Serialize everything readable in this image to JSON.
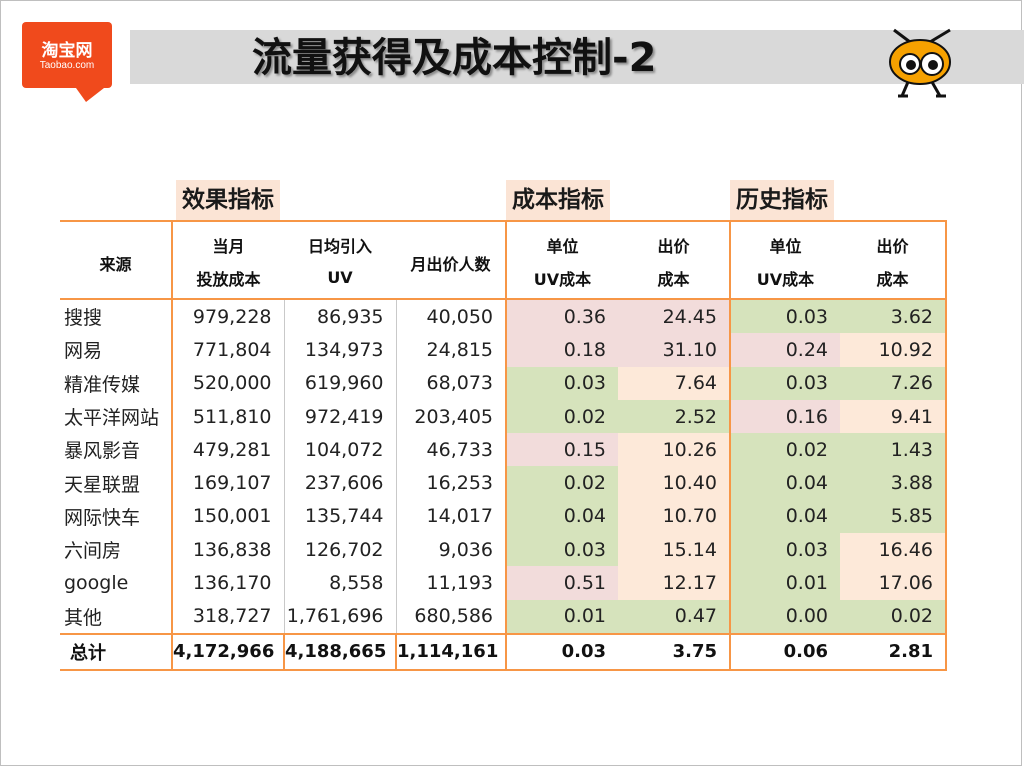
{
  "logo": {
    "cn": "淘宝网",
    "en": "Taobao.com"
  },
  "title": "流量获得及成本控制-2",
  "table": {
    "groups": {
      "effect": "效果指标",
      "cost": "成本指标",
      "history": "历史指标"
    },
    "headers": {
      "source": "来源",
      "monthly_cost_1": "当月",
      "monthly_cost_2": "投放成本",
      "daily_uv_1": "日均引入",
      "daily_uv_2": "UV",
      "monthly_bidders": "月出价人数",
      "unit_1": "单位",
      "unit_2": "UV成本",
      "bid_1": "出价",
      "bid_2": "成本",
      "hist_unit_1": "单位",
      "hist_unit_2": "UV成本",
      "hist_bid_1": "出价",
      "hist_bid_2": "成本"
    },
    "rows": [
      {
        "source": "搜搜",
        "cost": "979,228",
        "uv": "86,935",
        "bidders": "40,050",
        "unit": "0.36",
        "bid": "24.45",
        "h_unit": "0.03",
        "h_bid": "3.62"
      },
      {
        "source": "网易",
        "cost": "771,804",
        "uv": "134,973",
        "bidders": "24,815",
        "unit": "0.18",
        "bid": "31.10",
        "h_unit": "0.24",
        "h_bid": "10.92"
      },
      {
        "source": "精准传媒",
        "cost": "520,000",
        "uv": "619,960",
        "bidders": "68,073",
        "unit": "0.03",
        "bid": "7.64",
        "h_unit": "0.03",
        "h_bid": "7.26"
      },
      {
        "source": "太平洋网站",
        "cost": "511,810",
        "uv": "972,419",
        "bidders": "203,405",
        "unit": "0.02",
        "bid": "2.52",
        "h_unit": "0.16",
        "h_bid": "9.41"
      },
      {
        "source": "暴风影音",
        "cost": "479,281",
        "uv": "104,072",
        "bidders": "46,733",
        "unit": "0.15",
        "bid": "10.26",
        "h_unit": "0.02",
        "h_bid": "1.43"
      },
      {
        "source": "天星联盟",
        "cost": "169,107",
        "uv": "237,606",
        "bidders": "16,253",
        "unit": "0.02",
        "bid": "10.40",
        "h_unit": "0.04",
        "h_bid": "3.88"
      },
      {
        "source": "网际快车",
        "cost": "150,001",
        "uv": "135,744",
        "bidders": "14,017",
        "unit": "0.04",
        "bid": "10.70",
        "h_unit": "0.04",
        "h_bid": "5.85"
      },
      {
        "source": "六间房",
        "cost": "136,838",
        "uv": "126,702",
        "bidders": "9,036",
        "unit": "0.03",
        "bid": "15.14",
        "h_unit": "0.03",
        "h_bid": "16.46"
      },
      {
        "source": "google",
        "cost": "136,170",
        "uv": "8,558",
        "bidders": "11,193",
        "unit": "0.51",
        "bid": "12.17",
        "h_unit": "0.01",
        "h_bid": "17.06"
      },
      {
        "source": "其他",
        "cost": "318,727",
        "uv": "1,761,696",
        "bidders": "680,586",
        "unit": "0.01",
        "bid": "0.47",
        "h_unit": "0.00",
        "h_bid": "0.02"
      }
    ],
    "total": {
      "source": "总计",
      "cost": "4,172,966",
      "uv": "4,188,665",
      "bidders": "1,114,161",
      "unit": "0.03",
      "bid": "3.75",
      "h_unit": "0.06",
      "h_bid": "2.81"
    },
    "cell_colors": {
      "pink": "#f2dcdb",
      "green": "#d6e3bc",
      "peach": "#fde9d9",
      "border": "#f79646"
    }
  }
}
